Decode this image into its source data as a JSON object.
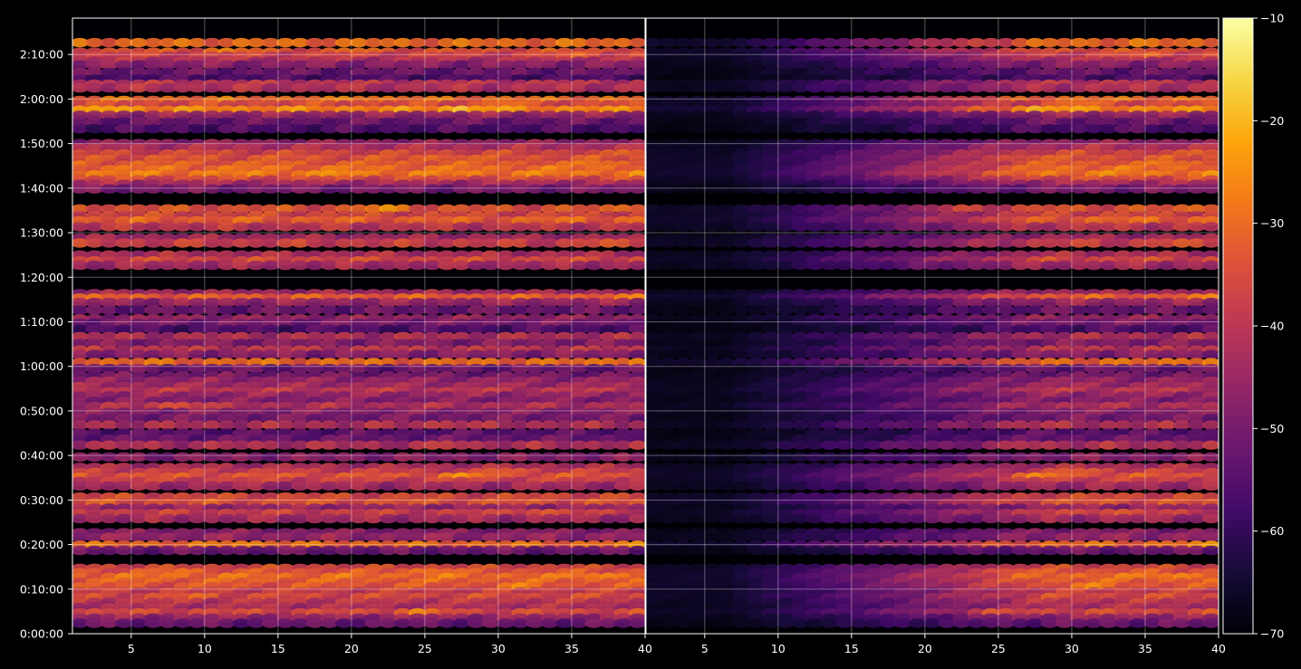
{
  "chart_data": {
    "type": "heatmap",
    "title": "",
    "xlabel": "",
    "ylabel": "",
    "panels": [
      {
        "name": "",
        "x_range": [
          1,
          40
        ],
        "x_ticks": [
          5,
          10,
          15,
          20,
          25,
          30,
          35,
          40
        ],
        "x_tick_labels": [
          "5",
          "10",
          "15",
          "20",
          "25",
          "30",
          "35",
          "40"
        ],
        "fade": null
      },
      {
        "name": "",
        "x_range": [
          1,
          40
        ],
        "x_ticks": [
          5,
          10,
          15,
          20,
          25,
          30,
          35,
          40
        ],
        "x_tick_labels": [
          "5",
          "10",
          "15",
          "20",
          "25",
          "30",
          "35",
          "40"
        ],
        "fade": {
          "start": 6,
          "end": 28,
          "min": 0.12
        }
      }
    ],
    "y_range_seconds": [
      0,
      8290
    ],
    "y_ticks_seconds": [
      0,
      600,
      1200,
      1800,
      2400,
      3000,
      3600,
      4200,
      4800,
      5400,
      6000,
      6600,
      7200,
      7800
    ],
    "y_tick_labels": [
      "0:00:00",
      "0:10:00",
      "0:20:00",
      "0:30:00",
      "0:40:00",
      "0:50:00",
      "1:00:00",
      "1:10:00",
      "1:20:00",
      "1:30:00",
      "1:40:00",
      "1:50:00",
      "2:00:00",
      "2:10:00"
    ],
    "grid": true,
    "colorbar": {
      "colormap": "inferno",
      "range": [
        -70,
        -10
      ],
      "ticks": [
        -10,
        -20,
        -30,
        -40,
        -50,
        -60,
        -70
      ],
      "tick_labels": [
        "−10",
        "−20",
        "−30",
        "−40",
        "−50",
        "−60",
        "−70"
      ]
    },
    "bands_seconds": [
      {
        "t": 7960,
        "level": -30,
        "peaks": []
      },
      {
        "t": 7830,
        "level": -34,
        "peaks": [
          {
            "x": 11,
            "level": -26
          },
          {
            "x": 20,
            "level": -28
          }
        ]
      },
      {
        "t": 7780,
        "level": -38,
        "peaks": [
          {
            "x": 35,
            "level": -30
          }
        ]
      },
      {
        "t": 7710,
        "level": -42,
        "peaks": []
      },
      {
        "t": 7660,
        "level": -48,
        "peaks": []
      },
      {
        "t": 7560,
        "level": -52,
        "peaks": []
      },
      {
        "t": 7470,
        "level": -56,
        "peaks": []
      },
      {
        "t": 7400,
        "level": -40,
        "peaks": []
      },
      {
        "t": 7350,
        "level": -42,
        "peaks": []
      },
      {
        "t": 7180,
        "level": -30,
        "peaks": [
          {
            "x": 20,
            "level": -24
          }
        ]
      },
      {
        "t": 7120,
        "level": -36,
        "peaks": [
          {
            "x": 30,
            "level": -28
          }
        ]
      },
      {
        "t": 7050,
        "level": -26,
        "peaks": [
          {
            "x": 27,
            "level": -18
          },
          {
            "x": 3,
            "level": -20
          }
        ]
      },
      {
        "t": 6980,
        "level": -46,
        "peaks": []
      },
      {
        "t": 6890,
        "level": -52,
        "peaks": []
      },
      {
        "t": 6800,
        "level": -56,
        "peaks": []
      },
      {
        "t": 6600,
        "level": -46,
        "peaks": []
      },
      {
        "t": 6540,
        "level": -42,
        "peaks": []
      },
      {
        "t": 6460,
        "level": -36,
        "peaks": [
          {
            "x": 39,
            "level": -28
          }
        ]
      },
      {
        "t": 6390,
        "level": -34,
        "peaks": [
          {
            "x": 26,
            "level": -28
          }
        ]
      },
      {
        "t": 6310,
        "level": -32,
        "peaks": [
          {
            "x": 36,
            "level": -26
          }
        ]
      },
      {
        "t": 6250,
        "level": -30,
        "peaks": []
      },
      {
        "t": 6180,
        "level": -28,
        "peaks": [
          {
            "x": 18,
            "level": -24
          }
        ]
      },
      {
        "t": 6110,
        "level": -36,
        "peaks": []
      },
      {
        "t": 6050,
        "level": -44,
        "peaks": []
      },
      {
        "t": 5990,
        "level": -50,
        "peaks": []
      },
      {
        "t": 5720,
        "level": -34,
        "peaks": [
          {
            "x": 22,
            "level": -24
          },
          {
            "x": 39,
            "level": -26
          }
        ]
      },
      {
        "t": 5630,
        "level": -36,
        "peaks": []
      },
      {
        "t": 5560,
        "level": -32,
        "peaks": [
          {
            "x": 35,
            "level": -28
          }
        ]
      },
      {
        "t": 5480,
        "level": -40,
        "peaks": []
      },
      {
        "t": 5330,
        "level": -44,
        "peaks": []
      },
      {
        "t": 5260,
        "level": -38,
        "peaks": [
          {
            "x": 37,
            "level": -32
          }
        ]
      },
      {
        "t": 5100,
        "level": -42,
        "peaks": []
      },
      {
        "t": 5020,
        "level": -36,
        "peaks": []
      },
      {
        "t": 4960,
        "level": -44,
        "peaks": []
      },
      {
        "t": 4580,
        "level": -44,
        "peaks": []
      },
      {
        "t": 4520,
        "level": -32,
        "peaks": [
          {
            "x": 39,
            "level": -26
          }
        ]
      },
      {
        "t": 4460,
        "level": -46,
        "peaks": []
      },
      {
        "t": 4360,
        "level": -52,
        "peaks": []
      },
      {
        "t": 4240,
        "level": -46,
        "peaks": []
      },
      {
        "t": 4180,
        "level": -50,
        "peaks": []
      },
      {
        "t": 4100,
        "level": -56,
        "peaks": []
      },
      {
        "t": 4000,
        "level": -42,
        "peaks": []
      },
      {
        "t": 3910,
        "level": -48,
        "peaks": []
      },
      {
        "t": 3820,
        "level": -40,
        "peaks": []
      },
      {
        "t": 3760,
        "level": -48,
        "peaks": []
      },
      {
        "t": 3650,
        "level": -30,
        "peaks": [
          {
            "x": 38,
            "level": -24
          }
        ]
      },
      {
        "t": 3570,
        "level": -52,
        "peaks": []
      },
      {
        "t": 3470,
        "level": -50,
        "peaks": []
      },
      {
        "t": 3400,
        "level": -46,
        "peaks": []
      },
      {
        "t": 3330,
        "level": -44,
        "peaks": []
      },
      {
        "t": 3260,
        "level": -40,
        "peaks": []
      },
      {
        "t": 3200,
        "level": -46,
        "peaks": []
      },
      {
        "t": 3130,
        "level": -48,
        "peaks": []
      },
      {
        "t": 3060,
        "level": -42,
        "peaks": [
          {
            "x": 8,
            "level": -30
          }
        ]
      },
      {
        "t": 2980,
        "level": -48,
        "peaks": []
      },
      {
        "t": 2900,
        "level": -50,
        "peaks": []
      },
      {
        "t": 2810,
        "level": -42,
        "peaks": [
          {
            "x": 26,
            "level": -36
          }
        ]
      },
      {
        "t": 2700,
        "level": -54,
        "peaks": []
      },
      {
        "t": 2620,
        "level": -52,
        "peaks": []
      },
      {
        "t": 2540,
        "level": -42,
        "peaks": [
          {
            "x": 26,
            "level": -36
          }
        ]
      },
      {
        "t": 2380,
        "level": -48,
        "peaks": []
      },
      {
        "t": 2240,
        "level": -42,
        "peaks": []
      },
      {
        "t": 2170,
        "level": -38,
        "peaks": [
          {
            "x": 30,
            "level": -30
          }
        ]
      },
      {
        "t": 2110,
        "level": -34,
        "peaks": [
          {
            "x": 27,
            "level": -24
          }
        ]
      },
      {
        "t": 2050,
        "level": -38,
        "peaks": []
      },
      {
        "t": 1990,
        "level": -44,
        "peaks": []
      },
      {
        "t": 1840,
        "level": -36,
        "peaks": []
      },
      {
        "t": 1760,
        "level": -34,
        "peaks": []
      },
      {
        "t": 1690,
        "level": -46,
        "peaks": []
      },
      {
        "t": 1620,
        "level": -38,
        "peaks": [
          {
            "x": 32,
            "level": -30
          }
        ]
      },
      {
        "t": 1550,
        "level": -44,
        "peaks": []
      },
      {
        "t": 1360,
        "level": -48,
        "peaks": []
      },
      {
        "t": 1300,
        "level": -46,
        "peaks": []
      },
      {
        "t": 1190,
        "level": -30,
        "peaks": [
          {
            "x": 12,
            "level": -24
          },
          {
            "x": 39,
            "level": -24
          }
        ]
      },
      {
        "t": 1120,
        "level": -52,
        "peaks": []
      },
      {
        "t": 880,
        "level": -36,
        "peaks": []
      },
      {
        "t": 820,
        "level": -34,
        "peaks": [
          {
            "x": 8,
            "level": -28
          },
          {
            "x": 25,
            "level": -26
          }
        ]
      },
      {
        "t": 760,
        "level": -30,
        "peaks": [
          {
            "x": 36,
            "level": -24
          }
        ]
      },
      {
        "t": 690,
        "level": -32,
        "peaks": []
      },
      {
        "t": 630,
        "level": -34,
        "peaks": [
          {
            "x": 31,
            "level": -26
          }
        ]
      },
      {
        "t": 560,
        "level": -38,
        "peaks": []
      },
      {
        "t": 490,
        "level": -36,
        "peaks": [
          {
            "x": 9,
            "level": -30
          }
        ]
      },
      {
        "t": 420,
        "level": -40,
        "peaks": []
      },
      {
        "t": 350,
        "level": -42,
        "peaks": []
      },
      {
        "t": 280,
        "level": -36,
        "peaks": [
          {
            "x": 24,
            "level": -26
          }
        ]
      },
      {
        "t": 210,
        "level": -46,
        "peaks": []
      },
      {
        "t": 140,
        "level": -52,
        "peaks": []
      }
    ]
  }
}
